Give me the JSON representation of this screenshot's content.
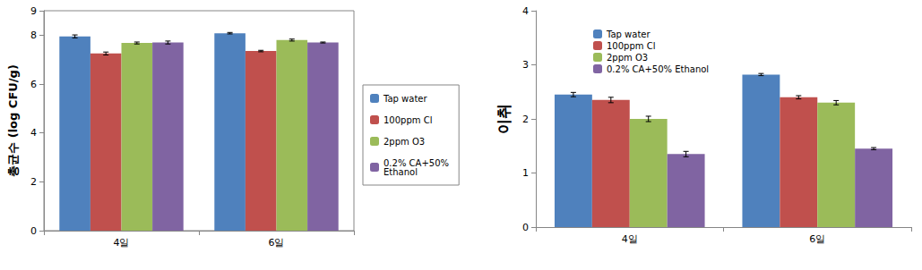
{
  "chart_data": [
    {
      "type": "bar",
      "y_label": "총균수 (log CFU/g)",
      "categories": [
        "4일",
        "6일"
      ],
      "series": [
        {
          "name": "Tap water",
          "color": "#4F81BD",
          "values": [
            7.95,
            8.08
          ],
          "errors": [
            0.06,
            0.03
          ]
        },
        {
          "name": "100ppm Cl",
          "color": "#C0504D",
          "values": [
            7.25,
            7.35
          ],
          "errors": [
            0.06,
            0.03
          ]
        },
        {
          "name": "2ppm O3",
          "color": "#9BBB59",
          "values": [
            7.68,
            7.8
          ],
          "errors": [
            0.04,
            0.04
          ]
        },
        {
          "name": "0.2% CA+50% Ethanol",
          "color": "#8064A2",
          "values": [
            7.7,
            7.7
          ],
          "errors": [
            0.06,
            0.02
          ]
        }
      ],
      "ylim": [
        0,
        9
      ],
      "yticks": [
        0,
        2,
        4,
        6,
        8
      ],
      "grid": false,
      "legend": "right"
    },
    {
      "type": "bar",
      "y_label": "이취",
      "categories": [
        "4일",
        "6일"
      ],
      "series": [
        {
          "name": "Tap water",
          "color": "#4F81BD",
          "values": [
            2.45,
            2.82
          ],
          "errors": [
            0.04,
            0.02
          ]
        },
        {
          "name": "100ppm Cl",
          "color": "#C0504D",
          "values": [
            2.35,
            2.4
          ],
          "errors": [
            0.05,
            0.03
          ]
        },
        {
          "name": "2ppm O3",
          "color": "#9BBB59",
          "values": [
            2.0,
            2.3
          ],
          "errors": [
            0.05,
            0.04
          ]
        },
        {
          "name": "0.2% CA+50% Ethanol",
          "color": "#8064A2",
          "values": [
            1.35,
            1.45
          ],
          "errors": [
            0.05,
            0.02
          ]
        }
      ],
      "ylim": [
        0,
        4
      ],
      "yticks": [
        0,
        1,
        2,
        3,
        4
      ],
      "grid": false,
      "legend": "upper left"
    }
  ]
}
